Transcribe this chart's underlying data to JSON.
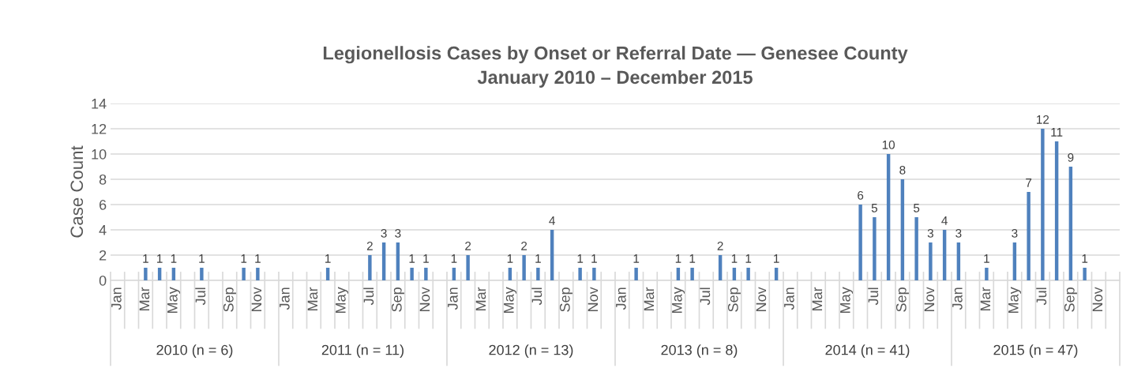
{
  "chart_data": {
    "type": "bar",
    "title": "Legionellosis Cases by Onset or Referral Date — Genesee County\nJanuary 2010 – December 2015",
    "ylabel": "Case Count",
    "categories": [
      "Jan",
      null,
      "Mar",
      null,
      "May",
      null,
      "Jul",
      null,
      "Sep",
      null,
      "Nov",
      null,
      "Jan",
      null,
      "Mar",
      null,
      "May",
      null,
      "Jul",
      null,
      "Sep",
      null,
      "Nov",
      null,
      "Jan",
      null,
      "Mar",
      null,
      "May",
      null,
      "Jul",
      null,
      "Sep",
      null,
      "Nov",
      null,
      "Jan",
      null,
      "Mar",
      null,
      "May",
      null,
      "Jul",
      null,
      "Sep",
      null,
      "Nov",
      null,
      "Jan",
      null,
      "Mar",
      null,
      "May",
      null,
      "Jul",
      null,
      "Sep",
      null,
      "Nov",
      null,
      "Jan",
      null,
      "Mar",
      null,
      "May",
      null,
      "Jul",
      null,
      "Sep",
      null,
      "Nov",
      null
    ],
    "values": [
      0,
      0,
      1,
      1,
      1,
      0,
      1,
      0,
      0,
      1,
      1,
      0,
      0,
      0,
      0,
      1,
      0,
      0,
      2,
      3,
      3,
      1,
      1,
      0,
      1,
      2,
      0,
      0,
      1,
      2,
      1,
      4,
      0,
      1,
      1,
      0,
      0,
      1,
      0,
      0,
      1,
      1,
      0,
      2,
      1,
      1,
      0,
      1,
      0,
      0,
      0,
      0,
      0,
      6,
      5,
      10,
      8,
      5,
      3,
      4,
      3,
      0,
      1,
      0,
      3,
      7,
      12,
      11,
      9,
      1,
      0,
      0
    ],
    "value_labels": [
      null,
      null,
      "1",
      "1",
      "1",
      null,
      "1",
      null,
      null,
      "1",
      "1",
      null,
      null,
      null,
      null,
      "1",
      null,
      null,
      "2",
      "3",
      "3",
      "1",
      "1",
      null,
      "1",
      "2",
      null,
      null,
      "1",
      "2",
      "1",
      "4",
      null,
      "1",
      "1",
      null,
      null,
      "1",
      null,
      null,
      "1",
      "1",
      null,
      "2",
      "1",
      "1",
      null,
      "1",
      null,
      null,
      null,
      null,
      null,
      "6",
      "5",
      "10",
      "8",
      "5",
      "3",
      "4",
      "3",
      null,
      "1",
      null,
      "3",
      "7",
      "12",
      "11",
      "9",
      "1",
      null,
      null
    ],
    "color": "#4f81bd",
    "ylim": [
      0,
      14
    ],
    "yticks": [
      0,
      2,
      4,
      6,
      8,
      10,
      12,
      14
    ],
    "grid": "y",
    "annotations": [
      "2010 (n = 6)",
      "2011 (n = 11)",
      "2012 (n = 13)",
      "2013 (n = 8)",
      "2014 (n = 41)",
      "2015 (n = 47)"
    ]
  }
}
